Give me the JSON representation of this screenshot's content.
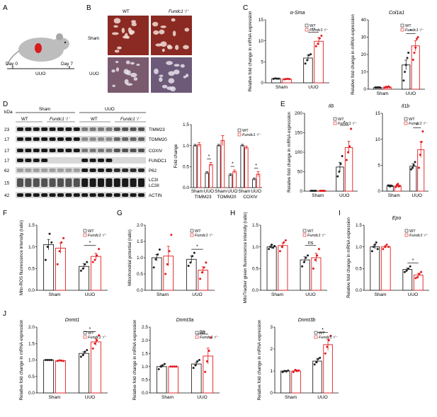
{
  "colors": {
    "wt": "#222222",
    "ko": "#e3191c",
    "tissue_bg": "#8a2a22",
    "blot_band": "#1a1a1a"
  },
  "panels": {
    "A": {
      "letter": "A",
      "day0": "Day 0",
      "day7": "Day 7",
      "uuo": "UUO"
    },
    "B": {
      "letter": "B",
      "col_wt": "WT",
      "col_ko": "Fundc1⁻/⁻",
      "row_sham": "Sham",
      "row_uuo": "UUO"
    },
    "C": {
      "letter": "C"
    },
    "D": {
      "letter": "D",
      "kda_label": "kDa",
      "group_sham": "Sham",
      "group_uuo": "UUO",
      "lane_wt": "WT",
      "lane_ko": "Fundc1⁻/⁻",
      "markers": [
        "23",
        "17",
        "17",
        "17",
        "62",
        "15",
        "42"
      ],
      "bands": [
        "TIMM23",
        "TOMM20",
        "COXIV",
        "FUNDC1",
        "P62",
        "LC3I",
        "LC3II",
        "ACTIN"
      ]
    },
    "E": {
      "letter": "E"
    },
    "F": {
      "letter": "F"
    },
    "G": {
      "letter": "G"
    },
    "H": {
      "letter": "H"
    },
    "I": {
      "letter": "I"
    },
    "J": {
      "letter": "J"
    }
  },
  "legend": {
    "wt": "WT",
    "ko": "Fundc1⁻/⁻"
  },
  "chart_data": [
    {
      "id": "C1",
      "type": "bar",
      "title": "α-Sma",
      "ylabel": "Relative fold change in mRNA expression",
      "categories": [
        "Sham",
        "UUO"
      ],
      "ylim": [
        0,
        15
      ],
      "yticks": [
        0,
        5,
        10,
        15
      ],
      "series": [
        {
          "name": "WT",
          "values": [
            1.0,
            5.9
          ],
          "errors": [
            0.1,
            0.7
          ],
          "points": [
            [
              0.95,
              1.05,
              1.0,
              0.98
            ],
            [
              4.6,
              5.4,
              6.6,
              6.8
            ]
          ]
        },
        {
          "name": "Fundc1⁻/⁻",
          "values": [
            0.9,
            9.9
          ],
          "errors": [
            0.1,
            0.9
          ],
          "points": [
            [
              0.85,
              0.9,
              0.95,
              0.88
            ],
            [
              8.7,
              9.3,
              10.6,
              11.2
            ]
          ]
        }
      ],
      "sig": [
        {
          "label": "**",
          "group": 1
        }
      ]
    },
    {
      "id": "C2",
      "type": "bar",
      "title": "Col1a1",
      "ylabel": "Relative fold change in mRNA expression",
      "categories": [
        "Sham",
        "UUO"
      ],
      "ylim": [
        0,
        40
      ],
      "yticks": [
        0,
        10,
        20,
        30,
        40
      ],
      "series": [
        {
          "name": "WT",
          "values": [
            1.0,
            14.0
          ],
          "errors": [
            0.1,
            2.8
          ],
          "points": [
            [
              1.0,
              0.95,
              1.05,
              1.0,
              0.98
            ],
            [
              5.0,
              10.0,
              14.0,
              18.0,
              21.0
            ]
          ]
        },
        {
          "name": "Fundc1⁻/⁻",
          "values": [
            1.2,
            25.0
          ],
          "errors": [
            0.2,
            3.0
          ],
          "points": [
            [
              0.9,
              1.4,
              1.0,
              1.6,
              1.1
            ],
            [
              17.0,
              21.0,
              24.0,
              29.0,
              30.0
            ]
          ]
        }
      ],
      "sig": [
        {
          "label": "*",
          "group": 1
        }
      ]
    },
    {
      "id": "D2",
      "type": "bar",
      "title": "",
      "ylabel": "Fold change",
      "categories": [
        "TIMM23 Sham",
        "TIMM23 UUO",
        "TOMM20 Sham",
        "TOMM20 UUO",
        "COXIV Sham",
        "COXIV UUO"
      ],
      "groupLabels": [
        "TIMM23",
        "TOMM20",
        "COXIV"
      ],
      "subLabels": [
        "Sham",
        "UUO",
        "Sham",
        "UUO",
        "Sham",
        "UUO"
      ],
      "ylim": [
        0,
        1.5
      ],
      "yticks": [
        0,
        0.5,
        1.0,
        1.5
      ],
      "series": [
        {
          "name": "WT",
          "values": [
            1.0,
            0.35,
            1.0,
            0.3,
            1.0,
            0.2
          ],
          "errors": [
            0.03,
            0.03,
            0.03,
            0.03,
            0.03,
            0.03
          ]
        },
        {
          "name": "Fundc1⁻/⁻",
          "values": [
            1.02,
            0.55,
            1.12,
            0.38,
            0.95,
            0.32
          ],
          "errors": [
            0.05,
            0.05,
            0.12,
            0.04,
            0.04,
            0.06
          ]
        }
      ],
      "sig": [
        {
          "label": "*",
          "group": 1
        },
        {
          "label": "*",
          "group": 3
        },
        {
          "label": "*",
          "group": 5
        }
      ]
    },
    {
      "id": "E1",
      "type": "bar",
      "title": "Il6",
      "ylabel": "Relative fold change in mRNA expression",
      "categories": [
        "Sham",
        "UUO"
      ],
      "ylim": [
        0,
        200
      ],
      "yticks": [
        0,
        50,
        100,
        150,
        200
      ],
      "series": [
        {
          "name": "WT",
          "values": [
            1.0,
            62.0
          ],
          "errors": [
            0.5,
            12.0
          ],
          "points": [
            [
              1,
              1,
              1,
              1
            ],
            [
              38,
              50,
              70,
              90
            ]
          ]
        },
        {
          "name": "Fundc1⁻/⁻",
          "values": [
            1.0,
            112.0
          ],
          "errors": [
            0.5,
            16.0
          ],
          "points": [
            [
              1,
              1,
              1,
              1
            ],
            [
              80,
              100,
              115,
              160
            ]
          ]
        }
      ],
      "sig": [
        {
          "label": "*",
          "group": 1
        }
      ]
    },
    {
      "id": "E2",
      "type": "bar",
      "title": "Il1b",
      "ylabel": "",
      "categories": [
        "Sham",
        "UUO"
      ],
      "ylim": [
        0,
        15
      ],
      "yticks": [
        0,
        5,
        10,
        15
      ],
      "series": [
        {
          "name": "WT",
          "values": [
            1.0,
            4.8
          ],
          "errors": [
            0.2,
            0.5
          ],
          "points": [
            [
              1.1,
              1.0,
              0.9,
              1.05,
              1.0
            ],
            [
              4.2,
              4.5,
              5.0,
              5.6
            ]
          ]
        },
        {
          "name": "Fundc1⁻/⁻",
          "values": [
            1.0,
            8.0
          ],
          "errors": [
            0.2,
            1.5
          ],
          "points": [
            [
              0.8,
              1.2,
              1.4,
              0.9,
              1.0
            ],
            [
              4.5,
              7.0,
              9.5,
              11.5
            ]
          ]
        }
      ],
      "sig": [
        {
          "label": "*",
          "group": 1
        }
      ]
    },
    {
      "id": "F",
      "type": "bar",
      "title": "",
      "ylabel": "Mito-ROS fluorescence intensity (ratio)",
      "categories": [
        "Sham",
        "UUO"
      ],
      "ylim": [
        0,
        1.5
      ],
      "yticks": [
        0.0,
        0.5,
        1.0,
        1.5
      ],
      "series": [
        {
          "name": "WT",
          "values": [
            1.05,
            0.55
          ],
          "errors": [
            0.12,
            0.06
          ],
          "points": [
            [
              0.7,
              1.0,
              1.3,
              1.1
            ],
            [
              0.45,
              0.5,
              0.6,
              0.65
            ]
          ]
        },
        {
          "name": "Fundc1⁻/⁻",
          "values": [
            0.97,
            0.78
          ],
          "errors": [
            0.12,
            0.07
          ],
          "points": [
            [
              0.6,
              0.9,
              1.1,
              1.2
            ],
            [
              0.65,
              0.7,
              0.8,
              0.95
            ]
          ]
        }
      ],
      "sig": [
        {
          "label": "*",
          "group": 1
        }
      ]
    },
    {
      "id": "G",
      "type": "bar",
      "title": "",
      "ylabel": "Mitochondrial potential (ratio)",
      "categories": [
        "Sham",
        "UUO"
      ],
      "ylim": [
        0,
        2.0
      ],
      "yticks": [
        0.0,
        0.5,
        1.0,
        1.5,
        2.0
      ],
      "series": [
        {
          "name": "WT",
          "values": [
            1.0,
            0.95
          ],
          "errors": [
            0.1,
            0.1
          ],
          "points": [
            [
              0.7,
              0.95,
              1.1,
              1.25
            ],
            [
              0.75,
              0.85,
              1.05,
              1.15
            ]
          ]
        },
        {
          "name": "Fundc1⁻/⁻",
          "values": [
            1.05,
            0.62
          ],
          "errors": [
            0.3,
            0.1
          ],
          "points": [
            [
              0.5,
              0.8,
              1.2,
              1.7
            ],
            [
              0.35,
              0.55,
              0.7,
              0.85
            ]
          ]
        }
      ],
      "sig": [
        {
          "label": "*",
          "group": 1
        }
      ]
    },
    {
      "id": "H",
      "type": "bar",
      "title": "",
      "ylabel": "MitoTracker green fluorescence intensity (ratio)",
      "categories": [
        "Sham",
        "UUO"
      ],
      "ylim": [
        0,
        1.5
      ],
      "yticks": [
        0.0,
        0.5,
        1.0,
        1.5
      ],
      "series": [
        {
          "name": "WT",
          "values": [
            1.0,
            0.7
          ],
          "errors": [
            0.04,
            0.07
          ],
          "points": [
            [
              0.95,
              1.0,
              1.05,
              0.98,
              1.02
            ],
            [
              0.55,
              0.65,
              0.75,
              0.8
            ]
          ]
        },
        {
          "name": "Fundc1⁻/⁻",
          "values": [
            1.03,
            0.75
          ],
          "errors": [
            0.06,
            0.1
          ],
          "points": [
            [
              0.9,
              1.0,
              1.1,
              1.15
            ],
            [
              0.5,
              0.7,
              0.8,
              0.95
            ]
          ]
        }
      ],
      "sig": [
        {
          "label": "ns",
          "group": 1
        }
      ]
    },
    {
      "id": "I",
      "type": "bar",
      "title": "Epo",
      "ylabel": "Relative fold change in mRNA expression",
      "categories": [
        "Sham",
        "UUO"
      ],
      "ylim": [
        0,
        1.5
      ],
      "yticks": [
        0.0,
        0.5,
        1.0,
        1.5
      ],
      "series": [
        {
          "name": "WT",
          "values": [
            1.0,
            0.48
          ],
          "errors": [
            0.05,
            0.03
          ],
          "points": [
            [
              0.9,
              1.0,
              1.05,
              1.1,
              0.95
            ],
            [
              0.42,
              0.45,
              0.5,
              0.55
            ]
          ]
        },
        {
          "name": "Fundc1⁻/⁻",
          "values": [
            1.0,
            0.35
          ],
          "errors": [
            0.03,
            0.04
          ],
          "points": [
            [
              0.95,
              1.0,
              1.05,
              1.0
            ],
            [
              0.28,
              0.3,
              0.38,
              0.42
            ]
          ]
        }
      ],
      "sig": [
        {
          "label": "*",
          "group": 1
        }
      ]
    },
    {
      "id": "J1",
      "type": "bar",
      "title": "Dnmt1",
      "ylabel": "Relative fold change in mRNA expression",
      "categories": [
        "Sham",
        "UUO"
      ],
      "ylim": [
        0,
        2.0
      ],
      "yticks": [
        0.0,
        0.5,
        1.0,
        1.5,
        2.0
      ],
      "series": [
        {
          "name": "WT",
          "values": [
            1.0,
            1.2
          ],
          "errors": [
            0.01,
            0.05
          ],
          "points": [
            [
              1,
              1,
              1,
              1
            ],
            [
              1.1,
              1.15,
              1.25,
              1.3
            ]
          ]
        },
        {
          "name": "Fundc1⁻/⁻",
          "values": [
            0.98,
            1.55
          ],
          "errors": [
            0.02,
            0.1
          ],
          "points": [
            [
              0.97,
              0.99,
              0.98,
              0.97
            ],
            [
              1.35,
              1.5,
              1.6,
              1.75
            ]
          ]
        }
      ],
      "sig": [
        {
          "label": "*",
          "group": 1
        }
      ]
    },
    {
      "id": "J2",
      "type": "bar",
      "title": "Dnmt3a",
      "ylabel": "Relative fold change in mRNA expression",
      "categories": [
        "Sham",
        "UUO"
      ],
      "ylim": [
        0,
        2.5
      ],
      "yticks": [
        0.0,
        0.5,
        1.0,
        1.5,
        2.0,
        2.5
      ],
      "series": [
        {
          "name": "WT",
          "values": [
            1.0,
            1.1
          ],
          "errors": [
            0.05,
            0.06
          ],
          "points": [
            [
              0.9,
              1.0,
              1.05,
              1.1
            ],
            [
              0.95,
              1.05,
              1.2,
              1.25
            ]
          ]
        },
        {
          "name": "Fundc1⁻/⁻",
          "values": [
            1.0,
            1.4
          ],
          "errors": [
            0.01,
            0.3
          ],
          "points": [
            [
              1,
              1,
              1,
              1
            ],
            [
              0.8,
              1.2,
              1.6,
              2.1
            ]
          ]
        }
      ],
      "sig": [
        {
          "label": "ns",
          "group": 1
        }
      ]
    },
    {
      "id": "J3",
      "type": "bar",
      "title": "Dnmt3b",
      "ylabel": "Relative fold change in mRNA expression",
      "categories": [
        "Sham",
        "UUO"
      ],
      "ylim": [
        0,
        3
      ],
      "yticks": [
        0,
        1,
        2,
        3
      ],
      "series": [
        {
          "name": "WT",
          "values": [
            1.0,
            1.45
          ],
          "errors": [
            0.02,
            0.1
          ],
          "points": [
            [
              0.95,
              1.0,
              0.98,
              1.02
            ],
            [
              1.3,
              1.4,
              1.55,
              1.6
            ]
          ]
        },
        {
          "name": "Fundc1⁻/⁻",
          "values": [
            1.0,
            2.2
          ],
          "errors": [
            0.05,
            0.25
          ],
          "points": [
            [
              0.95,
              1.05,
              1.0,
              1.02
            ],
            [
              1.8,
              2.1,
              2.4,
              2.6
            ]
          ]
        }
      ],
      "sig": [
        {
          "label": "*",
          "group": 1
        }
      ]
    }
  ]
}
